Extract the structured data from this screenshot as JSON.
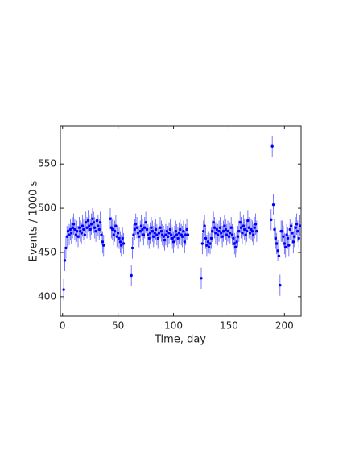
{
  "chart_data": {
    "type": "scatter",
    "x_label": "Time, day",
    "y_label": "Events / 1000 s",
    "xlim": [
      -2,
      215
    ],
    "ylim": [
      378,
      593
    ],
    "xticks": [
      0,
      50,
      100,
      150,
      200
    ],
    "yticks": [
      400,
      450,
      500,
      550
    ],
    "series": [
      {
        "color": "#0000ff",
        "error_color": "#5a5aff",
        "error": 12,
        "x": [
          1,
          2,
          3,
          4,
          5,
          6,
          7,
          8,
          9,
          10,
          11,
          12,
          13,
          14,
          15,
          16,
          17,
          18,
          19,
          20,
          21,
          22,
          23,
          24,
          25,
          26,
          27,
          28,
          29,
          30,
          31,
          32,
          33,
          34,
          35,
          36,
          37,
          43,
          44,
          45,
          46,
          47,
          48,
          49,
          50,
          51,
          52,
          53,
          54,
          55,
          62,
          63,
          64,
          65,
          66,
          67,
          68,
          69,
          70,
          71,
          72,
          73,
          74,
          75,
          76,
          77,
          78,
          79,
          80,
          81,
          82,
          83,
          84,
          85,
          86,
          87,
          88,
          89,
          90,
          91,
          92,
          93,
          94,
          95,
          96,
          97,
          98,
          99,
          100,
          101,
          102,
          103,
          104,
          105,
          106,
          107,
          108,
          109,
          110,
          111,
          112,
          113,
          125,
          126,
          127,
          128,
          129,
          130,
          131,
          132,
          133,
          134,
          135,
          136,
          137,
          138,
          139,
          140,
          141,
          142,
          143,
          144,
          145,
          146,
          147,
          148,
          149,
          150,
          151,
          152,
          153,
          154,
          155,
          156,
          157,
          158,
          159,
          160,
          161,
          162,
          163,
          164,
          165,
          166,
          167,
          168,
          169,
          170,
          171,
          172,
          173,
          174,
          175,
          188,
          189,
          190,
          191,
          192,
          193,
          194,
          195,
          196,
          197,
          198,
          199,
          200,
          201,
          202,
          203,
          204,
          205,
          206,
          207,
          208,
          209,
          210,
          211,
          212,
          213,
          214
        ],
        "values": [
          408,
          441,
          455,
          468,
          474,
          470,
          476,
          472,
          478,
          482,
          476,
          470,
          474,
          468,
          478,
          474,
          472,
          480,
          476,
          470,
          484,
          478,
          486,
          480,
          476,
          482,
          488,
          484,
          478,
          474,
          486,
          480,
          476,
          484,
          470,
          462,
          458,
          488,
          478,
          476,
          470,
          474,
          480,
          468,
          472,
          466,
          462,
          458,
          466,
          460,
          424,
          455,
          470,
          476,
          482,
          478,
          472,
          468,
          474,
          480,
          476,
          470,
          478,
          484,
          476,
          470,
          466,
          472,
          478,
          474,
          468,
          472,
          476,
          470,
          466,
          472,
          478,
          474,
          470,
          468,
          464,
          470,
          474,
          468,
          472,
          476,
          470,
          466,
          462,
          468,
          474,
          470,
          466,
          472,
          476,
          470,
          468,
          474,
          462,
          470,
          476,
          470,
          421,
          460,
          474,
          480,
          466,
          458,
          462,
          456,
          460,
          466,
          474,
          484,
          478,
          472,
          476,
          470,
          474,
          478,
          472,
          468,
          474,
          480,
          476,
          470,
          474,
          468,
          472,
          478,
          470,
          466,
          460,
          456,
          462,
          468,
          474,
          484,
          478,
          472,
          480,
          476,
          470,
          474,
          486,
          478,
          472,
          476,
          474,
          470,
          478,
          482,
          474,
          487,
          570,
          504,
          476,
          466,
          460,
          452,
          446,
          413,
          474,
          474,
          468,
          460,
          456,
          470,
          466,
          458,
          476,
          480,
          472,
          462,
          468,
          478,
          482,
          474,
          466,
          480
        ]
      }
    ]
  }
}
